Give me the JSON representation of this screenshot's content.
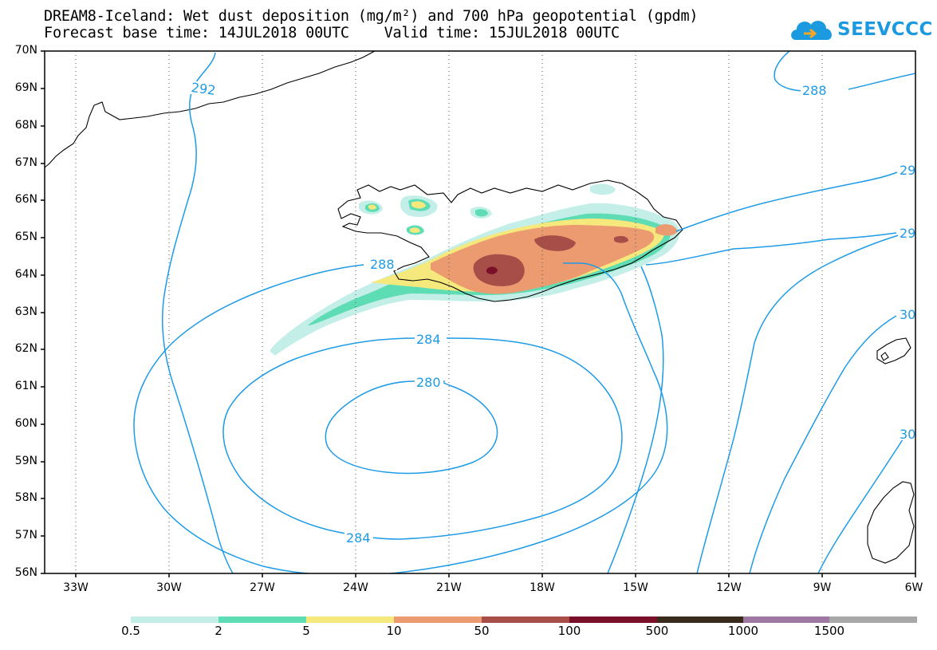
{
  "title": {
    "line1": "DREAM8-Iceland: Wet dust deposition (mg/m²) and 700 hPa geopotential (gpdm)",
    "line2": "Forecast base time: 14JUL2018 00UTC    Valid time: 15JUL2018 00UTC"
  },
  "logo": {
    "text": "SEEVCCC",
    "icon": "cloud-icon",
    "color": "#1b9ae0"
  },
  "map": {
    "region": "North Atlantic / Iceland",
    "lon_range": [
      -34.5,
      -6
    ],
    "lat_range": [
      56,
      70
    ],
    "grid": true,
    "coastline_color": "#000000",
    "contour_color": "#1e9be6"
  },
  "lat_labels": [
    "70N",
    "69N",
    "68N",
    "67N",
    "66N",
    "65N",
    "64N",
    "63N",
    "62N",
    "61N",
    "60N",
    "59N",
    "58N",
    "57N",
    "56N"
  ],
  "lon_labels": [
    "33W",
    "30W",
    "27W",
    "24W",
    "21W",
    "18W",
    "15W",
    "12W",
    "9W",
    "6W"
  ],
  "contour_labels": {
    "c292_nw": "292",
    "c288_ne": "288",
    "c29_e1": "29",
    "c29_e2": "29",
    "c30_e1": "30",
    "c30_e2": "30",
    "c288_center": "288",
    "c284_top": "284",
    "c280": "280",
    "c284_bottom": "284"
  },
  "colorbar": {
    "labels": [
      "0.5",
      "2",
      "5",
      "10",
      "50",
      "100",
      "500",
      "1000",
      "1500"
    ],
    "colors": [
      "#c3efe8",
      "#5edcb4",
      "#f5e87c",
      "#ec9a70",
      "#a84e48",
      "#7a0f2a",
      "#3a2a1c",
      "#9e78a2",
      "#a8a8a8"
    ]
  }
}
